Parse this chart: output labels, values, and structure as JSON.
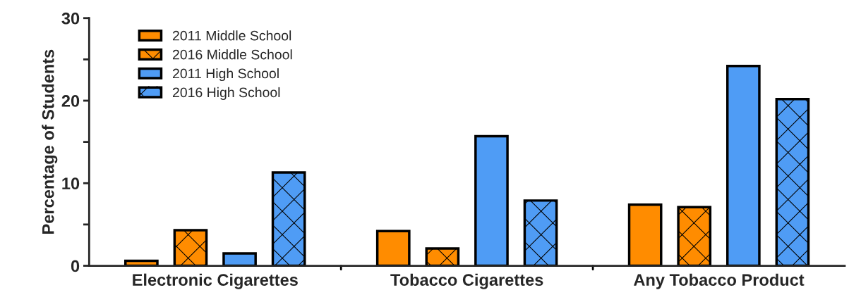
{
  "chart_data": {
    "type": "bar",
    "ylabel": "Percentage of Students",
    "categories": [
      "Electronic Cigarettes",
      "Tobacco Cigarettes",
      "Any Tobacco Product"
    ],
    "series": [
      {
        "name": "2011 Middle School",
        "color": "#ff8c00",
        "values": [
          0.6,
          4.2,
          7.4
        ]
      },
      {
        "name": "2016 Middle School",
        "color": "#ff8c00",
        "values": [
          4.3,
          2.1,
          7.1
        ]
      },
      {
        "name": "2011 High School",
        "color": "#4f9cf5",
        "values": [
          1.5,
          15.7,
          24.2
        ]
      },
      {
        "name": "2016 High School",
        "color": "#4f9cf5",
        "values": [
          11.3,
          7.9,
          20.2
        ]
      }
    ],
    "ylim": [
      0,
      30
    ],
    "yticks": [
      0,
      {
        "value": 5,
        "label": null
      },
      10,
      {
        "value": 15,
        "label": null
      },
      20,
      {
        "value": 25,
        "label": null
      },
      30
    ],
    "grid": false,
    "legend": "top left"
  }
}
